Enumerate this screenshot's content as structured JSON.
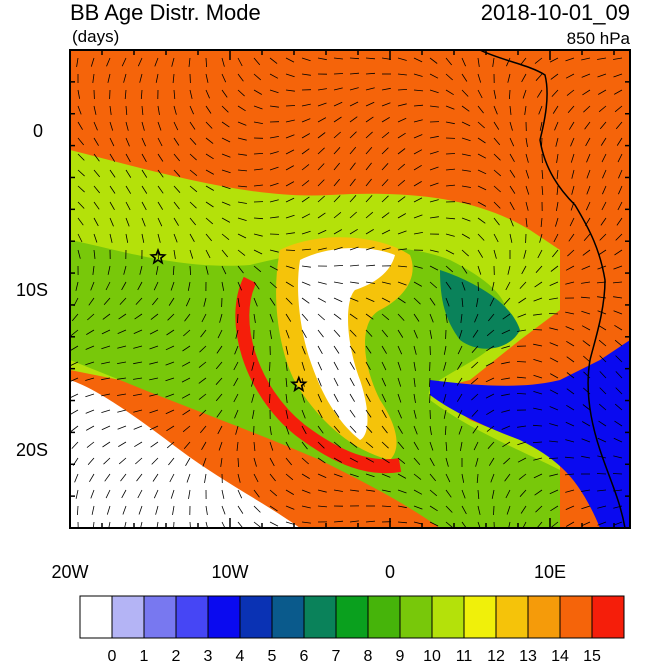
{
  "header": {
    "title": "BB Age Distr. Mode",
    "units": "(days)",
    "datetime": "2018-10-01_09",
    "level": "850 hPa"
  },
  "axes": {
    "lon_labels": [
      "20W",
      "10W",
      "0",
      "10E"
    ],
    "lat_labels": [
      "0",
      "10S",
      "20S"
    ],
    "lon_range": [
      -20,
      15
    ],
    "lat_range": [
      -25,
      5
    ]
  },
  "markers": [
    {
      "name": "star-1",
      "lon": -14.5,
      "lat": -8.0
    },
    {
      "name": "star-2",
      "lon": -5.7,
      "lat": -16.0
    }
  ],
  "colorbar": {
    "labels": [
      "0",
      "1",
      "2",
      "3",
      "4",
      "5",
      "6",
      "7",
      "8",
      "9",
      "10",
      "11",
      "12",
      "13",
      "14",
      "15"
    ],
    "colors": [
      "#ffffff",
      "#b4b4f5",
      "#7878f0",
      "#4646f5",
      "#0a0af0",
      "#0a32b4",
      "#0a5a8c",
      "#0a825a",
      "#0aa01e",
      "#46b40a",
      "#78c80a",
      "#b4e10a",
      "#f0f00a",
      "#f5c30a",
      "#f59b0a",
      "#f5640a",
      "#f51e0a"
    ]
  }
}
